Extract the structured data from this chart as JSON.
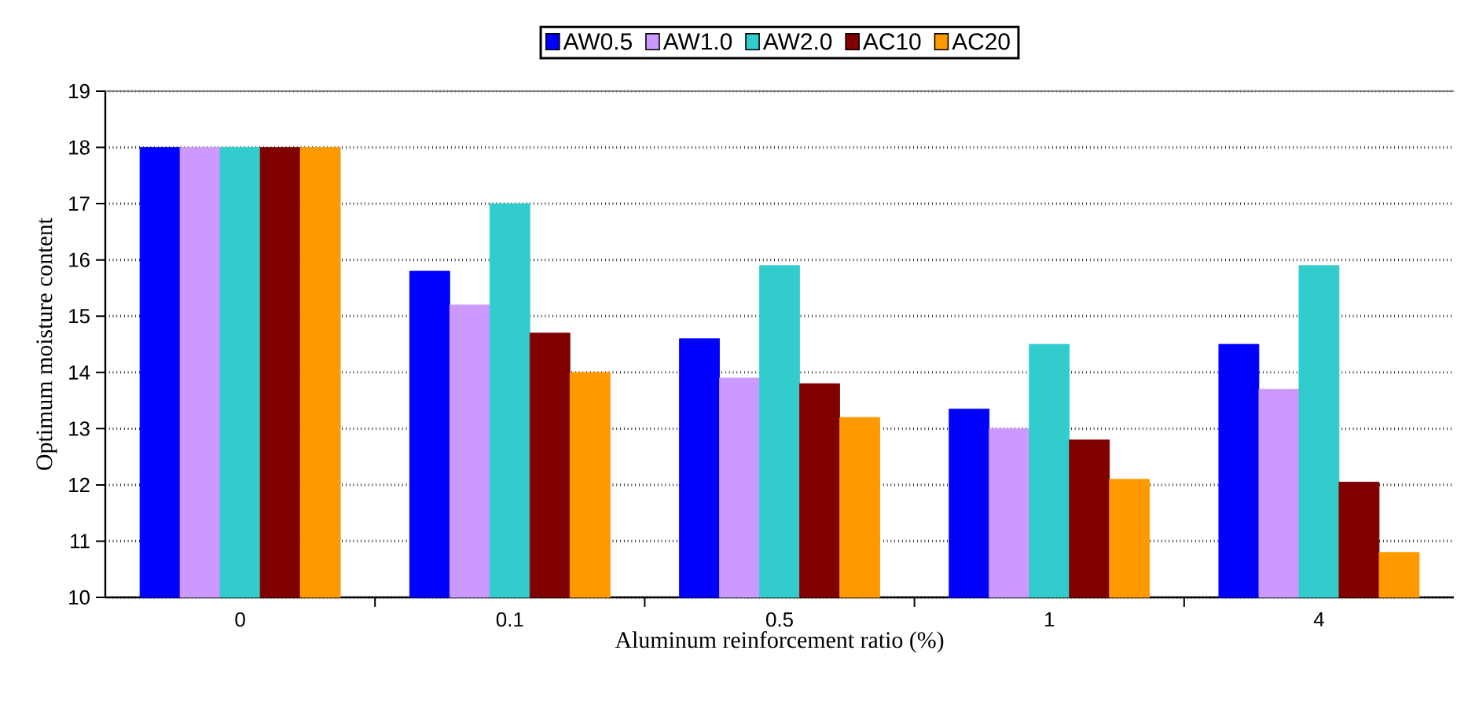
{
  "chart_data": {
    "type": "bar",
    "xlabel": "Aluminum reinforcement ratio (%)",
    "ylabel": "Optimum moisture content",
    "categories": [
      "0",
      "0.1",
      "0.5",
      "1",
      "4"
    ],
    "series": [
      {
        "name": "AW0.5",
        "color": "#0000ff",
        "values": [
          18,
          15.8,
          14.6,
          13.35,
          14.5
        ]
      },
      {
        "name": "AW1.0",
        "color": "#cc99ff",
        "values": [
          18,
          15.2,
          13.9,
          13.0,
          13.7
        ]
      },
      {
        "name": "AW2.0",
        "color": "#33cccc",
        "values": [
          18,
          17.0,
          15.9,
          14.5,
          15.9
        ]
      },
      {
        "name": "AC10",
        "color": "#800000",
        "values": [
          18,
          14.7,
          13.8,
          12.8,
          12.05
        ]
      },
      {
        "name": "AC20",
        "color": "#ff9900",
        "values": [
          18,
          14.0,
          13.2,
          12.1,
          10.8
        ]
      }
    ],
    "ylim": [
      10,
      19
    ],
    "yticks": [
      10,
      11,
      12,
      13,
      14,
      15,
      16,
      17,
      18,
      19
    ],
    "grid": "y",
    "legend": "top"
  }
}
